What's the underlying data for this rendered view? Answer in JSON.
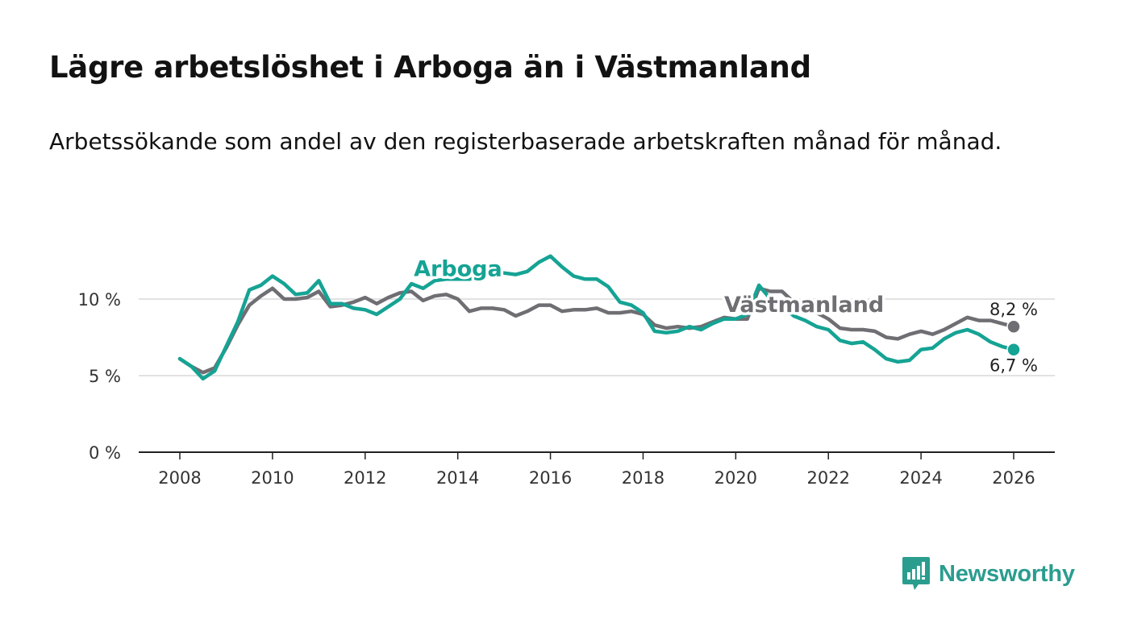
{
  "header": {
    "title": "Lägre arbetslöshet i Arboga än i Västmanland",
    "subtitle": "Arbetssökande som andel av den registerbaserade arbetskraften månad för månad."
  },
  "brand": {
    "name": "Newsworthy",
    "icon": "newsworthy-logo-icon",
    "color": "#2a9d8f"
  },
  "chart_data": {
    "type": "line",
    "title": "Lägre arbetslöshet i Arboga än i Västmanland",
    "subtitle": "Arbetssökande som andel av den registerbaserade arbetskraften månad för månad.",
    "xlabel": "",
    "ylabel": "",
    "xlim": [
      2007.5,
      2026.8
    ],
    "ylim": [
      0,
      13
    ],
    "y_ticks": [
      {
        "value": 0,
        "label": "0 %"
      },
      {
        "value": 5,
        "label": "5 %"
      },
      {
        "value": 10,
        "label": "10 %"
      }
    ],
    "x_ticks": [
      {
        "value": 2008,
        "label": "2008"
      },
      {
        "value": 2010,
        "label": "2010"
      },
      {
        "value": 2012,
        "label": "2012"
      },
      {
        "value": 2014,
        "label": "2014"
      },
      {
        "value": 2016,
        "label": "2016"
      },
      {
        "value": 2018,
        "label": "2018"
      },
      {
        "value": 2020,
        "label": "2020"
      },
      {
        "value": 2022,
        "label": "2022"
      },
      {
        "value": 2024,
        "label": "2024"
      },
      {
        "value": 2026,
        "label": "2026"
      }
    ],
    "grid": true,
    "series": [
      {
        "name": "Västmanland",
        "color": "#6e6e73",
        "label": {
          "text": "Västmanland",
          "x": 2019.75,
          "y": 9.15
        },
        "end_label": "8,2 %",
        "x": [
          2008.0,
          2008.25,
          2008.5,
          2008.75,
          2009.0,
          2009.25,
          2009.5,
          2009.75,
          2010.0,
          2010.25,
          2010.5,
          2010.75,
          2011.0,
          2011.25,
          2011.5,
          2011.75,
          2012.0,
          2012.25,
          2012.5,
          2012.75,
          2013.0,
          2013.25,
          2013.5,
          2013.75,
          2014.0,
          2014.25,
          2014.5,
          2014.75,
          2015.0,
          2015.25,
          2015.5,
          2015.75,
          2016.0,
          2016.25,
          2016.5,
          2016.75,
          2017.0,
          2017.25,
          2017.5,
          2017.75,
          2018.0,
          2018.25,
          2018.5,
          2018.75,
          2019.0,
          2019.25,
          2019.5,
          2019.75,
          2020.0,
          2020.25,
          2020.5,
          2020.75,
          2021.0,
          2021.25,
          2021.5,
          2021.75,
          2022.0,
          2022.25,
          2022.5,
          2022.75,
          2023.0,
          2023.25,
          2023.5,
          2023.75,
          2024.0,
          2024.25,
          2024.5,
          2024.75,
          2025.0,
          2025.25,
          2025.5,
          2025.75,
          2026.0
        ],
        "values": [
          6.1,
          5.6,
          5.2,
          5.5,
          6.8,
          8.3,
          9.6,
          10.2,
          10.7,
          10.0,
          10.0,
          10.1,
          10.5,
          9.5,
          9.6,
          9.8,
          10.1,
          9.7,
          10.1,
          10.4,
          10.5,
          9.9,
          10.2,
          10.3,
          10.0,
          9.2,
          9.4,
          9.4,
          9.3,
          8.9,
          9.2,
          9.6,
          9.6,
          9.2,
          9.3,
          9.3,
          9.4,
          9.1,
          9.1,
          9.2,
          9.0,
          8.3,
          8.1,
          8.2,
          8.1,
          8.2,
          8.5,
          8.8,
          8.7,
          8.7,
          10.7,
          10.5,
          10.5,
          9.8,
          9.6,
          9.1,
          8.7,
          8.1,
          8.0,
          8.0,
          7.9,
          7.5,
          7.4,
          7.7,
          7.9,
          7.7,
          8.0,
          8.4,
          8.8,
          8.6,
          8.6,
          8.4,
          8.2
        ]
      },
      {
        "name": "Arboga",
        "color": "#15a394",
        "label": {
          "text": "Arboga",
          "x": 2013.05,
          "y": 11.5
        },
        "end_label": "6,7 %",
        "x": [
          2008.0,
          2008.25,
          2008.5,
          2008.75,
          2009.0,
          2009.25,
          2009.5,
          2009.75,
          2010.0,
          2010.25,
          2010.5,
          2010.75,
          2011.0,
          2011.25,
          2011.5,
          2011.75,
          2012.0,
          2012.25,
          2012.5,
          2012.75,
          2013.0,
          2013.25,
          2013.5,
          2013.75,
          2014.0,
          2014.25,
          2014.5,
          2014.75,
          2015.0,
          2015.25,
          2015.5,
          2015.75,
          2016.0,
          2016.25,
          2016.5,
          2016.75,
          2017.0,
          2017.25,
          2017.5,
          2017.75,
          2018.0,
          2018.25,
          2018.5,
          2018.75,
          2019.0,
          2019.25,
          2019.5,
          2019.75,
          2020.0,
          2020.25,
          2020.5,
          2020.75,
          2021.0,
          2021.25,
          2021.5,
          2021.75,
          2022.0,
          2022.25,
          2022.5,
          2022.75,
          2023.0,
          2023.25,
          2023.5,
          2023.75,
          2024.0,
          2024.25,
          2024.5,
          2024.75,
          2025.0,
          2025.25,
          2025.5,
          2025.75,
          2026.0
        ],
        "values": [
          6.1,
          5.6,
          4.8,
          5.3,
          6.9,
          8.5,
          10.6,
          10.9,
          11.5,
          11.0,
          10.3,
          10.4,
          11.2,
          9.7,
          9.7,
          9.4,
          9.3,
          9.0,
          9.5,
          10.0,
          11.0,
          10.7,
          11.2,
          11.3,
          11.3,
          11.3,
          11.4,
          11.8,
          11.7,
          11.6,
          11.8,
          12.4,
          12.8,
          12.1,
          11.5,
          11.3,
          11.3,
          10.8,
          9.8,
          9.6,
          9.1,
          7.9,
          7.8,
          7.9,
          8.2,
          8.0,
          8.4,
          8.7,
          8.7,
          9.0,
          10.9,
          10.0,
          9.6,
          8.9,
          8.6,
          8.2,
          8.0,
          7.3,
          7.1,
          7.2,
          6.7,
          6.1,
          5.9,
          6.0,
          6.7,
          6.8,
          7.4,
          7.8,
          8.0,
          7.7,
          7.2,
          6.9,
          6.7
        ]
      }
    ]
  }
}
